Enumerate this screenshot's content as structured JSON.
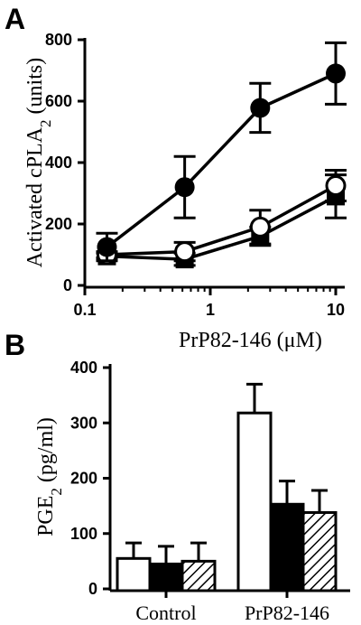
{
  "chart_data": [
    {
      "panel": "A",
      "type": "line",
      "xscale": "log",
      "x": [
        0.15,
        0.625,
        2.5,
        10
      ],
      "xticks": [
        "0.1",
        "1",
        "10"
      ],
      "yticks": [
        "0",
        "200",
        "400",
        "600",
        "800"
      ],
      "xlim": [
        0.1,
        10
      ],
      "ylim": [
        0,
        800
      ],
      "xlabel": "PrP82-146 (μM)",
      "ylabel_main": "Activated cPLA",
      "ylabel_sub": "2",
      "ylabel_tail": " (units)",
      "series": [
        {
          "marker": "filled-circle",
          "values": [
            125,
            320,
            578,
            690
          ],
          "errors": [
            45,
            100,
            80,
            100
          ]
        },
        {
          "marker": "open-circle",
          "values": [
            100,
            110,
            190,
            325
          ],
          "errors": [
            10,
            30,
            55,
            50
          ]
        },
        {
          "marker": "filled-square",
          "values": [
            95,
            85,
            160,
            290
          ],
          "errors": [
            10,
            20,
            30,
            70
          ]
        }
      ]
    },
    {
      "panel": "B",
      "type": "bar",
      "categories": [
        "Control",
        "PrP82-146"
      ],
      "yticks": [
        "0",
        "100",
        "200",
        "300",
        "400"
      ],
      "ylim": [
        0,
        400
      ],
      "ylabel_main": "PGE",
      "ylabel_sub": "2",
      "ylabel_tail": " (pg/ml)",
      "series": [
        {
          "fill": "white",
          "values": [
            55,
            318
          ],
          "errors": [
            28,
            52
          ]
        },
        {
          "fill": "black",
          "values": [
            45,
            153
          ],
          "errors": [
            32,
            42
          ]
        },
        {
          "fill": "hatched",
          "values": [
            50,
            138
          ],
          "errors": [
            33,
            40
          ]
        }
      ]
    }
  ],
  "labels": {
    "panel_a": "A",
    "panel_b": "B"
  }
}
